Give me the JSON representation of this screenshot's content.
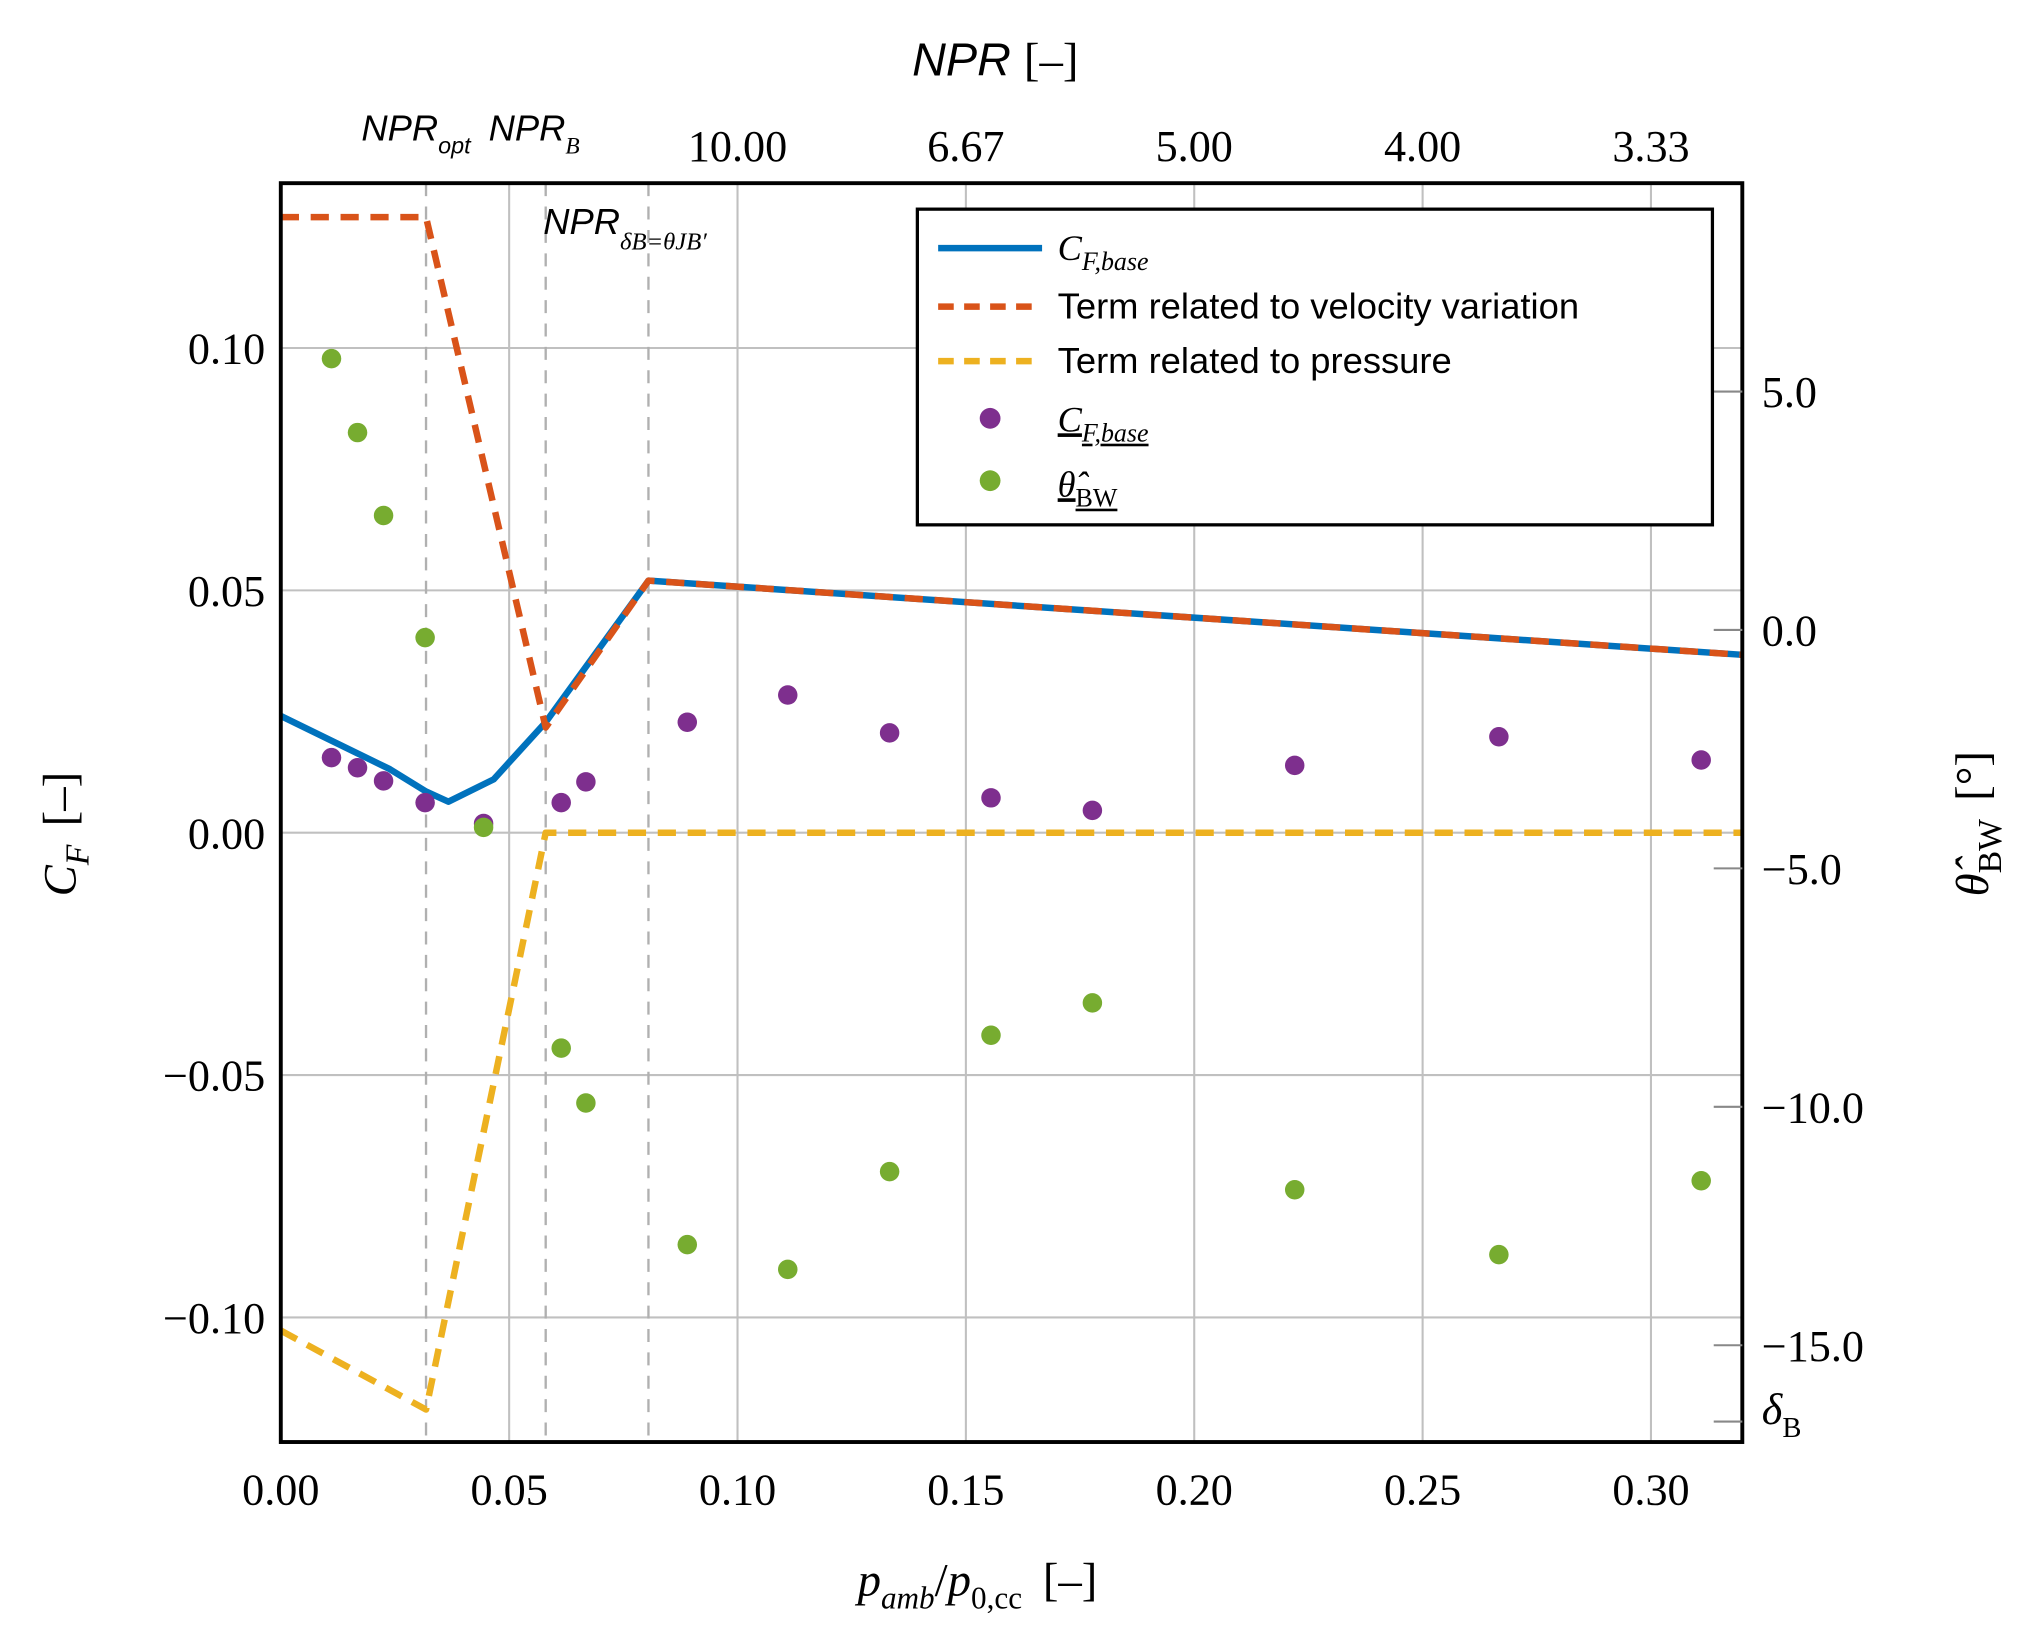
{
  "chart_data": {
    "type": "line",
    "title": "",
    "xlabel": {
      "main": "p",
      "sub1": "amb",
      "slash": "/",
      "main2": "p",
      "sub2": "0,cc",
      "unit": "[–]"
    },
    "ylabel": {
      "main": "C",
      "sub": "F",
      "unit": "[–]"
    },
    "y2label": {
      "main": "θ̂",
      "sub": "BW",
      "unit": "[°]"
    },
    "top_xlabel": {
      "main": "NPR",
      "unit": "[–]"
    },
    "xlim": [
      0,
      0.32
    ],
    "ylim": [
      -0.1257,
      0.134
    ],
    "y2lim": [
      -17.03,
      9.37
    ],
    "grid": true,
    "legend_position": "top-right",
    "x_ticks": [
      0.0,
      0.05,
      0.1,
      0.15,
      0.2,
      0.25,
      0.3
    ],
    "x_tick_labels": [
      "0.00",
      "0.05",
      "0.10",
      "0.15",
      "0.20",
      "0.25",
      "0.30"
    ],
    "y_ticks": [
      0.1,
      0.05,
      0.0,
      -0.05,
      -0.1
    ],
    "y_tick_labels": [
      "0.10",
      "0.05",
      "0.00",
      "−0.05",
      "−0.10"
    ],
    "y2_ticks": [
      5,
      0,
      -5,
      -10,
      -15
    ],
    "y2_tick_labels": [
      "5.0",
      "0.0",
      "−5.0",
      "−10.0",
      "−15.0"
    ],
    "y2_special_tick": {
      "value": -16.6,
      "label": "δ",
      "sub": "B"
    },
    "top_ticks": [
      0.1,
      0.15,
      0.2,
      0.25,
      0.3
    ],
    "top_tick_labels": [
      "10.00",
      "6.67",
      "5.00",
      "4.00",
      "3.33"
    ],
    "top_special": [
      {
        "x": 0.0318,
        "label": "NPR",
        "sub": "opt"
      },
      {
        "x": 0.058,
        "label": "NPR",
        "sub": "B"
      }
    ],
    "vertical_markers": [
      0.0318,
      0.058,
      0.0805
    ],
    "annotation": {
      "x": 0.0805,
      "label": "NPR",
      "sub": "δB=θJB′",
      "sub_display": "δ",
      "sub_b": "B",
      "eq": "=θ",
      "sub_jb": "JB′"
    },
    "series": [
      {
        "name": "C_F,base",
        "legend_main": "C",
        "legend_sub": "F,base",
        "color": "#0072BD",
        "style": "solid",
        "axis": "left",
        "x": [
          0,
          0.0239,
          0.0318,
          0.0367,
          0.0466,
          0.058,
          0.0805,
          0.32
        ],
        "y": [
          0.0241,
          0.0131,
          0.0085,
          0.0064,
          0.011,
          0.0228,
          0.052,
          0.0367
        ]
      },
      {
        "name": "Term related to velocity variation",
        "legend_main": "Term related to velocity variation",
        "color": "#D95319",
        "style": "dashed",
        "axis": "left",
        "x": [
          0,
          0.0318,
          0.058,
          0.0805,
          0.32
        ],
        "y": [
          0.127,
          0.127,
          0.0217,
          0.052,
          0.0367
        ]
      },
      {
        "name": "Term related to pressure",
        "legend_main": "Term related to pressure",
        "color": "#EDB120",
        "style": "dashed",
        "axis": "left",
        "x": [
          0,
          0.0318,
          0.058,
          0.32
        ],
        "y": [
          -0.1027,
          -0.119,
          0.0,
          0.0
        ]
      },
      {
        "name": "C_F,base (measured)",
        "legend_main": "C",
        "legend_sub": "F,base",
        "color": "#7E2F8E",
        "style": "marker",
        "axis": "left",
        "x": [
          0.0111,
          0.0168,
          0.0225,
          0.0316,
          0.0444,
          0.0614,
          0.0668,
          0.089,
          0.111,
          0.1333,
          0.1555,
          0.1777,
          0.222,
          0.2667,
          0.311
        ],
        "y": [
          0.0155,
          0.0134,
          0.0107,
          0.0062,
          0.0019,
          0.0062,
          0.0105,
          0.0228,
          0.0284,
          0.0206,
          0.0072,
          0.0046,
          0.0139,
          0.0198,
          0.015
        ]
      },
      {
        "name": "theta_BW",
        "legend_main": "θ̂",
        "legend_sub": "BW",
        "color": "#77AC30",
        "style": "marker",
        "axis": "right",
        "x": [
          0.0111,
          0.0168,
          0.0225,
          0.0316,
          0.0444,
          0.0614,
          0.0668,
          0.089,
          0.111,
          0.1333,
          0.1555,
          0.1777,
          0.222,
          0.2667,
          0.311
        ],
        "y": [
          5.69,
          4.14,
          2.4,
          -0.16,
          -4.14,
          -8.77,
          -9.92,
          -12.89,
          -13.41,
          -11.36,
          -8.5,
          -7.82,
          -11.74,
          -13.1,
          -11.55
        ]
      }
    ]
  }
}
